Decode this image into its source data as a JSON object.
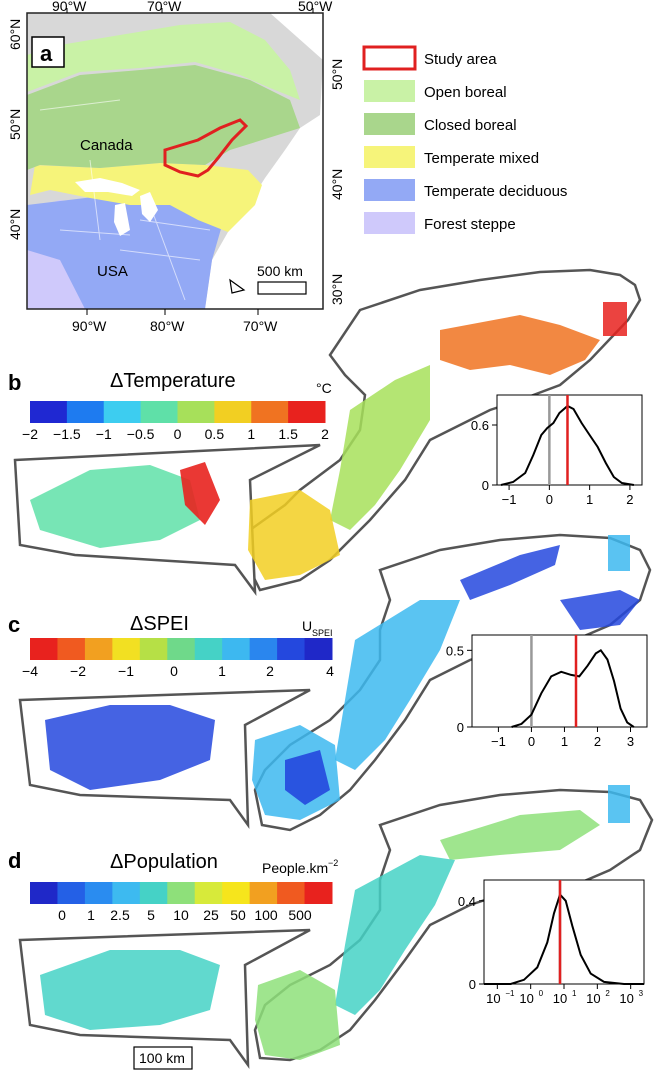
{
  "panel_a": {
    "label": "a",
    "top_ticks": [
      "90°W",
      "70°W",
      "50°W"
    ],
    "bottom_ticks": [
      "90°W",
      "80°W",
      "70°W"
    ],
    "left_ticks": [
      "60°N",
      "50°N",
      "40°N"
    ],
    "right_ticks": [
      "50°N",
      "40°N",
      "30°N"
    ],
    "map_labels": {
      "canada": "Canada",
      "usa": "USA"
    },
    "scale_label": "500 km",
    "legend": [
      {
        "label": "Study area",
        "color": "#e02020",
        "style": "outline"
      },
      {
        "label": "Open boreal",
        "color": "#c9f2a6",
        "style": "fill"
      },
      {
        "label": "Closed boreal",
        "color": "#a9d68c",
        "style": "fill"
      },
      {
        "label": "Temperate mixed",
        "color": "#f6f47a",
        "style": "fill"
      },
      {
        "label": "Temperate deciduous",
        "color": "#93a9f5",
        "style": "fill"
      },
      {
        "label": "Forest steppe",
        "color": "#cfc9fb",
        "style": "fill"
      }
    ]
  },
  "panel_b": {
    "label": "b",
    "title": "ΔTemperature",
    "unit": "°C",
    "colorbar_colors": [
      "#1f28d2",
      "#1e7bf0",
      "#3dcdf0",
      "#5fe0a8",
      "#a7e05a",
      "#f2cf22",
      "#f07321",
      "#e8221e"
    ],
    "colorbar_ticks": [
      "−2",
      "−1.5",
      "−1",
      "−0.5",
      "0",
      "0.5",
      "1",
      "1.5",
      "2"
    ],
    "density": {
      "x_ticks": [
        "−1",
        "0",
        "1",
        "2"
      ],
      "y_ticks": [
        "0",
        "0.6"
      ],
      "xlim": [
        -1.3,
        2.3
      ],
      "ylim": [
        0,
        0.9
      ],
      "gray_line": 0,
      "red_line": 0.45,
      "curve": [
        [
          -1.2,
          0.0
        ],
        [
          -0.9,
          0.03
        ],
        [
          -0.6,
          0.12
        ],
        [
          -0.4,
          0.3
        ],
        [
          -0.2,
          0.5
        ],
        [
          -0.05,
          0.57
        ],
        [
          0.1,
          0.62
        ],
        [
          0.25,
          0.72
        ],
        [
          0.45,
          0.79
        ],
        [
          0.6,
          0.76
        ],
        [
          0.8,
          0.62
        ],
        [
          1.0,
          0.5
        ],
        [
          1.2,
          0.38
        ],
        [
          1.4,
          0.22
        ],
        [
          1.6,
          0.08
        ],
        [
          1.8,
          0.02
        ],
        [
          2.1,
          0.0
        ]
      ]
    },
    "scale_label": ""
  },
  "panel_c": {
    "label": "c",
    "title": "ΔSPEI",
    "unit": "U",
    "unit_sub": "SPEI",
    "colorbar_colors": [
      "#e8221e",
      "#f05a20",
      "#f2a020",
      "#f2e022",
      "#b6e046",
      "#6fd98a",
      "#45d2c6",
      "#3db8f0",
      "#2a86ee",
      "#2448de",
      "#1f28c8"
    ],
    "colorbar_ticks": [
      "−4",
      "−2",
      "−1",
      "0",
      "1",
      "2",
      "4"
    ],
    "density": {
      "x_ticks": [
        "−1",
        "0",
        "1",
        "2",
        "3"
      ],
      "y_ticks": [
        "0",
        "0.5"
      ],
      "xlim": [
        -1.8,
        3.5
      ],
      "ylim": [
        0,
        0.6
      ],
      "gray_line": 0,
      "red_line": 1.35,
      "curve": [
        [
          -0.6,
          0.0
        ],
        [
          -0.3,
          0.02
        ],
        [
          0.0,
          0.08
        ],
        [
          0.3,
          0.22
        ],
        [
          0.6,
          0.33
        ],
        [
          0.9,
          0.36
        ],
        [
          1.2,
          0.34
        ],
        [
          1.45,
          0.33
        ],
        [
          1.7,
          0.4
        ],
        [
          1.95,
          0.48
        ],
        [
          2.1,
          0.5
        ],
        [
          2.3,
          0.44
        ],
        [
          2.5,
          0.3
        ],
        [
          2.7,
          0.12
        ],
        [
          2.9,
          0.03
        ],
        [
          3.1,
          0.0
        ]
      ]
    }
  },
  "panel_d": {
    "label": "d",
    "title": "ΔPopulation",
    "unit": "People.km",
    "unit_sup": "−2",
    "colorbar_colors": [
      "#1f28c8",
      "#2460e6",
      "#2a8cf0",
      "#3dbaf0",
      "#45d2c6",
      "#8ee07a",
      "#d7ea3a",
      "#f6e51c",
      "#f2a020",
      "#f05a20",
      "#e8221e"
    ],
    "colorbar_ticks": [
      "0",
      "1",
      "2.5",
      "5",
      "10",
      "25",
      "50",
      "100",
      "500"
    ],
    "density": {
      "x_ticks": [
        "10",
        "10",
        "10",
        "10",
        "10"
      ],
      "x_tick_sups": [
        "−1",
        "0",
        "1",
        "2",
        "3"
      ],
      "y_ticks": [
        "0",
        "0.4"
      ],
      "xlim": [
        -1.4,
        3.4
      ],
      "ylim": [
        0,
        0.5
      ],
      "gray_line": 0.88,
      "red_line": 0.88,
      "curve": [
        [
          -1.4,
          0.0
        ],
        [
          -0.6,
          0.0
        ],
        [
          -0.2,
          0.02
        ],
        [
          0.2,
          0.08
        ],
        [
          0.5,
          0.2
        ],
        [
          0.7,
          0.34
        ],
        [
          0.88,
          0.43
        ],
        [
          1.05,
          0.4
        ],
        [
          1.25,
          0.28
        ],
        [
          1.5,
          0.14
        ],
        [
          1.8,
          0.05
        ],
        [
          2.2,
          0.01
        ],
        [
          2.8,
          0.0
        ],
        [
          3.4,
          0.0
        ]
      ]
    },
    "scale_label": "100 km"
  }
}
